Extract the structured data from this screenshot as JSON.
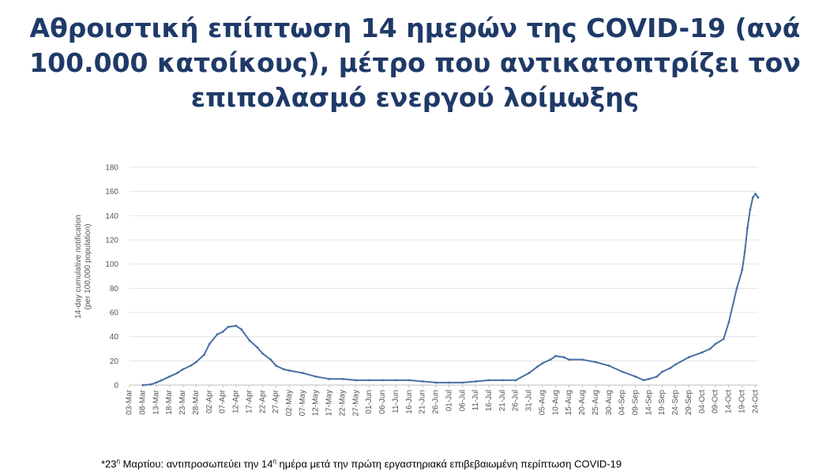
{
  "title": {
    "line1": "Αθροιστική επίπτωση 14 ημερών της COVID-19 (ανά",
    "line2": "100.000 κατοίκους), μέτρο που αντικατοπτρίζει τον",
    "line3": "επιπολασμό ενεργού λοίμωξης"
  },
  "footnote": {
    "prefix": "*23",
    "sup1": "η",
    "middle": " Μαρτίου: αντιπροσωπεύει την 14",
    "sup2": "η",
    "suffix": " ημέρα μετά την πρώτη εργαστηριακά επιβεβαιωμένη περίπτωση COVID-19"
  },
  "chart_data": {
    "type": "line",
    "ylabel_line1": "14-day cumulative notification",
    "ylabel_line2": "(per 100,000 population)",
    "ylim": [
      0,
      180
    ],
    "yticks": [
      0,
      20,
      40,
      60,
      80,
      100,
      120,
      140,
      160,
      180
    ],
    "grid": true,
    "line_color": "#4a6fa5",
    "xtick_labels": [
      "03-Mar",
      "08-Mar",
      "13-Mar",
      "18-Mar",
      "23-Mar",
      "28-Mar",
      "02-Apr",
      "07-Apr",
      "12-Apr",
      "17-Apr",
      "22-Apr",
      "27-Apr",
      "02-May",
      "07-May",
      "12-May",
      "17-May",
      "22-May",
      "27-May",
      "01-Jun",
      "06-Jun",
      "11-Jun",
      "16-Jun",
      "21-Jun",
      "26-Jun",
      "01-Jul",
      "06-Jul",
      "11-Jul",
      "16-Jul",
      "21-Jul",
      "26-Jul",
      "31-Jul",
      "05-Aug",
      "10-Aug",
      "15-Aug",
      "20-Aug",
      "25-Aug",
      "30-Aug",
      "04-Sep",
      "09-Sep",
      "14-Sep",
      "19-Sep",
      "24-Sep",
      "29-Sep",
      "04-Oct",
      "09-Oct",
      "14-Oct",
      "19-Oct",
      "24-Oct"
    ],
    "series": [
      {
        "points": [
          [
            "08-Mar",
            0
          ],
          [
            "11-Mar",
            0.5
          ],
          [
            "13-Mar",
            2
          ],
          [
            "15-Mar",
            4
          ],
          [
            "18-Mar",
            7
          ],
          [
            "21-Mar",
            10
          ],
          [
            "23-Mar",
            13
          ],
          [
            "26-Mar",
            16
          ],
          [
            "28-Mar",
            19
          ],
          [
            "31-Mar",
            25
          ],
          [
            "02-Apr",
            34
          ],
          [
            "05-Apr",
            42
          ],
          [
            "07-Apr",
            44
          ],
          [
            "09-Apr",
            48
          ],
          [
            "12-Apr",
            49
          ],
          [
            "14-Apr",
            46
          ],
          [
            "17-Apr",
            37
          ],
          [
            "20-Apr",
            31
          ],
          [
            "22-Apr",
            26
          ],
          [
            "25-Apr",
            21
          ],
          [
            "27-Apr",
            16
          ],
          [
            "30-Apr",
            13
          ],
          [
            "02-May",
            12
          ],
          [
            "07-May",
            10
          ],
          [
            "12-May",
            7
          ],
          [
            "17-May",
            5
          ],
          [
            "22-May",
            5
          ],
          [
            "27-May",
            4
          ],
          [
            "01-Jun",
            4
          ],
          [
            "06-Jun",
            4
          ],
          [
            "11-Jun",
            4
          ],
          [
            "16-Jun",
            4
          ],
          [
            "21-Jun",
            3
          ],
          [
            "26-Jun",
            2
          ],
          [
            "01-Jul",
            2
          ],
          [
            "06-Jul",
            2
          ],
          [
            "11-Jul",
            3
          ],
          [
            "16-Jul",
            4
          ],
          [
            "21-Jul",
            4
          ],
          [
            "26-Jul",
            4
          ],
          [
            "31-Jul",
            10
          ],
          [
            "03-Aug",
            15
          ],
          [
            "05-Aug",
            18
          ],
          [
            "08-Aug",
            21
          ],
          [
            "10-Aug",
            24
          ],
          [
            "13-Aug",
            23
          ],
          [
            "15-Aug",
            21
          ],
          [
            "20-Aug",
            21
          ],
          [
            "25-Aug",
            19
          ],
          [
            "30-Aug",
            16
          ],
          [
            "04-Sep",
            11
          ],
          [
            "09-Sep",
            7
          ],
          [
            "12-Sep",
            4
          ],
          [
            "14-Sep",
            5
          ],
          [
            "17-Sep",
            7
          ],
          [
            "19-Sep",
            11
          ],
          [
            "22-Sep",
            14
          ],
          [
            "24-Sep",
            17
          ],
          [
            "29-Sep",
            23
          ],
          [
            "04-Oct",
            27
          ],
          [
            "07-Oct",
            30
          ],
          [
            "09-Oct",
            34
          ],
          [
            "12-Oct",
            38
          ],
          [
            "14-Oct",
            52
          ],
          [
            "17-Oct",
            80
          ],
          [
            "19-Oct",
            95
          ],
          [
            "20-Oct",
            110
          ],
          [
            "21-Oct",
            130
          ],
          [
            "22-Oct",
            145
          ],
          [
            "23-Oct",
            155
          ],
          [
            "24-Oct",
            158
          ],
          [
            "25-Oct",
            155
          ]
        ]
      }
    ]
  }
}
